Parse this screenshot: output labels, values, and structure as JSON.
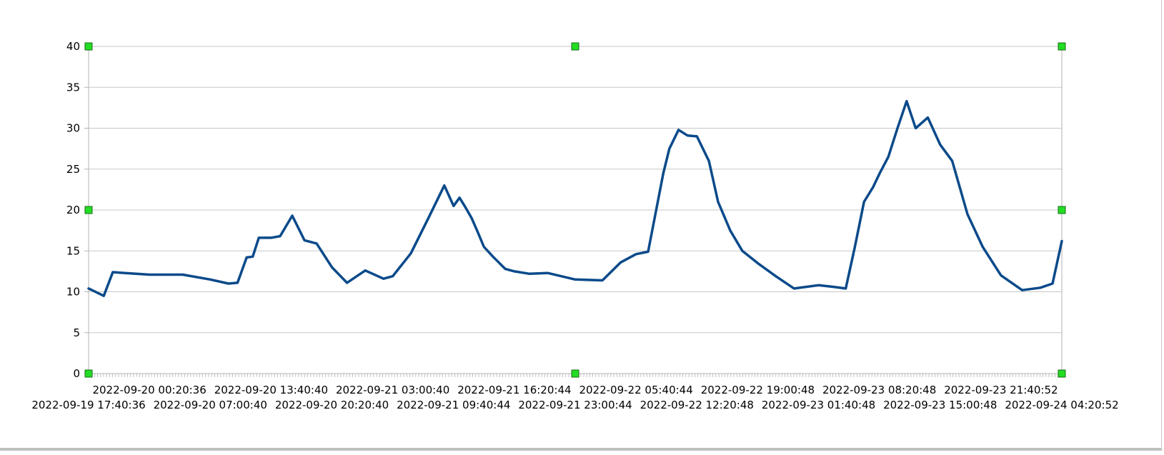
{
  "chart_data": {
    "type": "line",
    "title": "",
    "xlabel": "",
    "ylabel": "",
    "ylim": [
      0,
      40
    ],
    "y_ticks": [
      "0",
      "5",
      "10",
      "15",
      "20",
      "25",
      "30",
      "35",
      "40"
    ],
    "x_tick_labels_upper": [
      "2022-09-20 00:20:36",
      "2022-09-20 13:40:40",
      "2022-09-21 03:00:40",
      "2022-09-21 16:20:44",
      "2022-09-22 05:40:44",
      "2022-09-22 19:00:48",
      "2022-09-23 08:20:48",
      "2022-09-23 21:40:52"
    ],
    "x_tick_labels_lower": [
      "2022-09-19 17:40:36",
      "2022-09-20 07:00:40",
      "2022-09-20 20:20:40",
      "2022-09-21 09:40:44",
      "2022-09-21 23:00:44",
      "2022-09-22 12:20:48",
      "2022-09-23 01:40:48",
      "2022-09-23 15:00:48",
      "2022-09-24 04:20:52"
    ],
    "grid": true,
    "line_color": "#0b4a8a",
    "selection_handle_color": "#22dd22",
    "series": [
      {
        "x": [
          "2022-09-19 17:40:36",
          "2022-09-19 19:20:00",
          "2022-09-19 20:20:00",
          "2022-09-19 21:40:00",
          "2022-09-20 00:20:36",
          "2022-09-20 04:00:00",
          "2022-09-20 07:00:40",
          "2022-09-20 09:00:00",
          "2022-09-20 10:00:00",
          "2022-09-20 11:00:00",
          "2022-09-20 11:40:00",
          "2022-09-20 12:20:00",
          "2022-09-20 13:40:40",
          "2022-09-20 14:40:00",
          "2022-09-20 16:00:00",
          "2022-09-20 17:20:00",
          "2022-09-20 18:40:00",
          "2022-09-20 20:20:40",
          "2022-09-20 22:00:00",
          "2022-09-21 00:00:00",
          "2022-09-21 02:00:00",
          "2022-09-21 03:00:40",
          "2022-09-21 05:00:00",
          "2022-09-21 07:00:00",
          "2022-09-21 08:40:00",
          "2022-09-21 09:40:44",
          "2022-09-21 10:20:00",
          "2022-09-21 11:00:00",
          "2022-09-21 11:40:00",
          "2022-09-21 12:20:00",
          "2022-09-21 13:00:00",
          "2022-09-21 14:00:00",
          "2022-09-21 15:20:00",
          "2022-09-21 16:20:44",
          "2022-09-21 18:00:00",
          "2022-09-21 20:00:00",
          "2022-09-21 23:00:44",
          "2022-09-22 02:00:00",
          "2022-09-22 04:00:00",
          "2022-09-22 05:40:44",
          "2022-09-22 07:00:00",
          "2022-09-22 08:40:00",
          "2022-09-22 09:20:00",
          "2022-09-22 10:20:00",
          "2022-09-22 11:20:00",
          "2022-09-22 12:20:48",
          "2022-09-22 13:40:00",
          "2022-09-22 14:40:00",
          "2022-09-22 16:00:00",
          "2022-09-22 17:20:00",
          "2022-09-22 19:00:48",
          "2022-09-22 21:00:00",
          "2022-09-22 23:00:00",
          "2022-09-23 01:40:48",
          "2022-09-23 03:20:00",
          "2022-09-23 04:40:00",
          "2022-09-23 05:40:00",
          "2022-09-23 06:40:00",
          "2022-09-23 07:40:00",
          "2022-09-23 08:20:48",
          "2022-09-23 09:20:00",
          "2022-09-23 10:20:00",
          "2022-09-23 11:20:00",
          "2022-09-23 12:20:00",
          "2022-09-23 13:40:00",
          "2022-09-23 15:00:48",
          "2022-09-23 16:20:00",
          "2022-09-23 18:00:00",
          "2022-09-23 19:40:00",
          "2022-09-23 21:40:52",
          "2022-09-24 00:00:00",
          "2022-09-24 02:00:00",
          "2022-09-24 03:20:00",
          "2022-09-24 04:20:52"
        ],
        "y": [
          10.4,
          9.5,
          12.4,
          12.3,
          12.1,
          12.1,
          11.5,
          11.0,
          11.1,
          14.2,
          14.3,
          16.6,
          16.6,
          16.8,
          19.3,
          16.3,
          15.9,
          13.0,
          11.1,
          12.6,
          11.6,
          11.9,
          14.7,
          19.2,
          23.0,
          20.5,
          21.5,
          20.3,
          19.0,
          17.3,
          15.5,
          14.3,
          12.8,
          12.5,
          12.2,
          12.3,
          11.5,
          11.4,
          13.6,
          14.6,
          14.9,
          24.5,
          27.5,
          29.8,
          29.1,
          29.0,
          26.0,
          21.0,
          17.5,
          15.0,
          13.5,
          11.9,
          10.4,
          10.8,
          10.6,
          10.4,
          15.5,
          21.0,
          22.8,
          24.4,
          26.5,
          30.0,
          33.3,
          30.0,
          31.3,
          28.0,
          26.0,
          19.5,
          15.5,
          12.0,
          10.2,
          10.5,
          11.0,
          16.2
        ]
      }
    ]
  }
}
